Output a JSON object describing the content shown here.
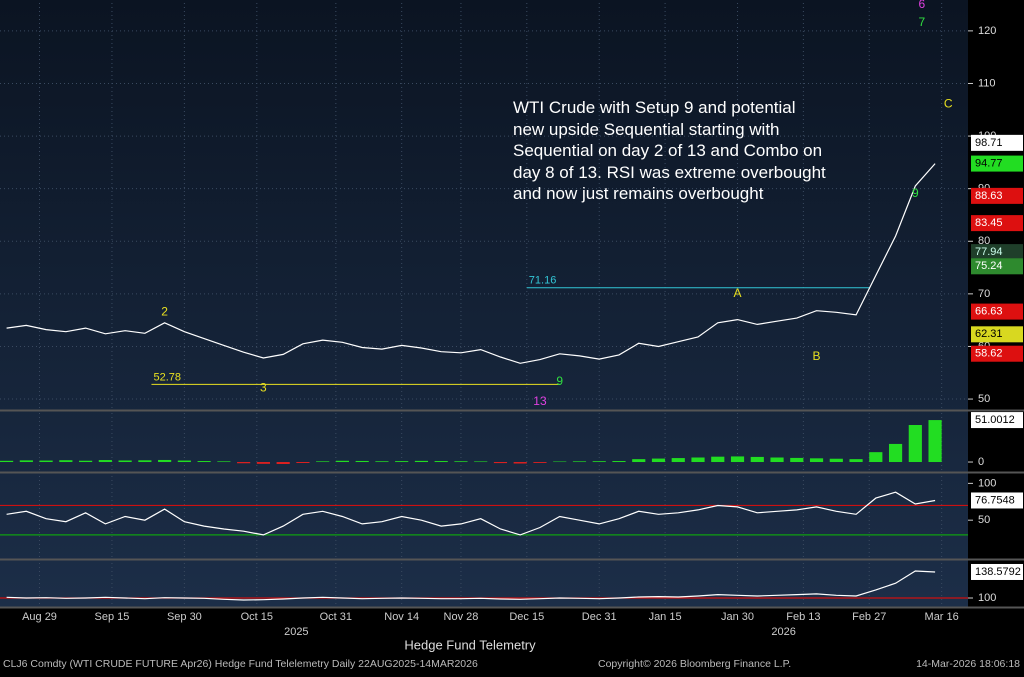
{
  "chart_data": [
    {
      "type": "line",
      "name": "price",
      "color": "#ffffff",
      "x": [
        0,
        3,
        6,
        9,
        12,
        15,
        18,
        21,
        24,
        27,
        30,
        33,
        36,
        39,
        42,
        45,
        48,
        51,
        54,
        57,
        60,
        63,
        66,
        69,
        72,
        75,
        78,
        81,
        84,
        87,
        90,
        93,
        96,
        99,
        102,
        105,
        108,
        111,
        114,
        117,
        120,
        123,
        126,
        129,
        132,
        135,
        138,
        141
      ],
      "values": [
        63.5,
        64,
        63.2,
        62.8,
        63.5,
        62.4,
        63.0,
        62.5,
        64.5,
        62.8,
        61.5,
        60.2,
        58.9,
        57.8,
        58.5,
        60.5,
        61.2,
        60.8,
        59.8,
        59.5,
        60.2,
        59.7,
        59.0,
        58.8,
        59.4,
        58.0,
        56.8,
        57.5,
        58.6,
        58.2,
        57.6,
        58.4,
        60.6,
        60.0,
        60.9,
        61.8,
        64.5,
        65.1,
        64.2,
        64.8,
        65.4,
        66.8,
        66.5,
        66.0,
        73.5,
        81.0,
        90.5,
        94.77
      ],
      "xlim": [
        -1,
        146
      ],
      "xticks": [
        {
          "value": 5,
          "label": "Aug 29"
        },
        {
          "value": 16,
          "label": "Sep 15"
        },
        {
          "value": 27,
          "label": "Sep 30"
        },
        {
          "value": 38,
          "label": "Oct 15"
        },
        {
          "value": 50,
          "label": "Oct 31"
        },
        {
          "value": 60,
          "label": "Nov 14"
        },
        {
          "value": 69,
          "label": "Nov 28"
        },
        {
          "value": 79,
          "label": "Dec 15"
        },
        {
          "value": 90,
          "label": "Dec 31"
        },
        {
          "value": 100,
          "label": "Jan 15"
        },
        {
          "value": 111,
          "label": "Jan 30"
        },
        {
          "value": 121,
          "label": "Feb 13"
        },
        {
          "value": 131,
          "label": "Feb 27"
        },
        {
          "value": 142,
          "label": "Mar 16"
        }
      ],
      "years": [
        {
          "value": 44,
          "label": "2025"
        },
        {
          "value": 118,
          "label": "2026"
        }
      ],
      "ylim": [
        48.3,
        125.3
      ],
      "yticks": [
        50,
        60,
        70,
        80,
        90,
        100,
        110,
        120
      ],
      "grid": true,
      "annotation": "WTI Crude with Setup 9 and potential new upside Sequential starting with Sequential on day 2 of 13 and Combo on day 8 of 13.  RSI was extreme overbought and now just remains overbought",
      "levels": [
        {
          "value": 71.16,
          "from": 79,
          "to": 131,
          "color": "#33c6d6"
        },
        {
          "value": 52.78,
          "from": 22,
          "to": 84,
          "color": "#e8e020"
        }
      ],
      "marks": [
        {
          "text": "A",
          "x": 111,
          "y": 70,
          "color": "#e8e020"
        },
        {
          "text": "B",
          "x": 123,
          "y": 58,
          "color": "#e8e020"
        },
        {
          "text": "C",
          "x": 143,
          "y": 106,
          "color": "#e8e020"
        },
        {
          "text": "6",
          "x": 139,
          "y": 125,
          "color": "#e040e0"
        },
        {
          "text": "7",
          "x": 139,
          "y": 121.5,
          "color": "#30e040"
        },
        {
          "text": "9",
          "x": 138,
          "y": 89,
          "color": "#30e040"
        },
        {
          "text": "9",
          "x": 84,
          "y": 53.3,
          "color": "#30e040"
        },
        {
          "text": "13",
          "x": 81,
          "y": 49.5,
          "color": "#e040e0"
        },
        {
          "text": "2",
          "x": 24,
          "y": 66.5,
          "color": "#e8e020"
        },
        {
          "text": "3",
          "x": 39,
          "y": 52,
          "color": "#e8e020"
        }
      ],
      "price_tags": [
        {
          "value": 98.71,
          "color": "#ffffff",
          "text_color": "#000000"
        },
        {
          "value": 94.77,
          "color": "#22dd22",
          "text_color": "#000000"
        },
        {
          "value": 88.63,
          "color": "#dd1010",
          "text_color": "#ffffff"
        },
        {
          "value": 83.45,
          "color": "#dd1010",
          "text_color": "#ffffff"
        },
        {
          "value": 77.94,
          "color": "#1f3f2a",
          "text_color": "#cfe"
        },
        {
          "value": 75.24,
          "color": "#2e8a2e",
          "text_color": "#ffffff"
        },
        {
          "value": 66.63,
          "color": "#dd1010",
          "text_color": "#ffffff"
        },
        {
          "value": 62.31,
          "color": "#d8d820",
          "text_color": "#000000"
        },
        {
          "value": 58.62,
          "color": "#dd1010",
          "text_color": "#ffffff"
        }
      ]
    },
    {
      "type": "bar",
      "name": "momentum",
      "pos_color": "#22dd22",
      "neg_color": "#dd2020",
      "values": [
        1.5,
        2,
        1.8,
        2.2,
        1.6,
        2.4,
        1.9,
        2.1,
        2.5,
        1.8,
        1.2,
        0.8,
        -1.5,
        -2.2,
        -2.4,
        -1.2,
        0.8,
        1.5,
        1.3,
        0.9,
        1.1,
        1.4,
        1.2,
        0.9,
        0.7,
        -1.3,
        -1.8,
        -1.1,
        0.6,
        0.8,
        1.0,
        1.2,
        3.5,
        4.2,
        4.8,
        5.5,
        6.5,
        6.8,
        6.2,
        5.5,
        5.0,
        4.5,
        4.0,
        3.5,
        12,
        22,
        45,
        51.0012
      ],
      "ylim": [
        -9.7,
        59.6
      ],
      "yticks": [
        0
      ]
    },
    {
      "type": "line",
      "name": "rsi",
      "color": "#ffffff",
      "values": [
        58,
        62,
        52,
        48,
        60,
        45,
        55,
        50,
        65,
        48,
        42,
        38,
        35,
        30,
        42,
        58,
        62,
        55,
        45,
        48,
        55,
        50,
        42,
        45,
        52,
        38,
        30,
        40,
        55,
        50,
        45,
        52,
        62,
        58,
        60,
        64,
        70,
        68,
        60,
        62,
        64,
        68,
        62,
        58,
        80,
        88,
        72,
        76.7548
      ],
      "ylim": [
        0,
        110
      ],
      "yticks": [
        50,
        100
      ],
      "ref_lines": [
        {
          "value": 70,
          "color": "#cc1010"
        },
        {
          "value": 30,
          "color": "#10a010"
        }
      ]
    },
    {
      "type": "line",
      "name": "osc",
      "color": "#ffffff",
      "values": [
        101,
        100,
        100.5,
        99.5,
        100,
        101,
        100,
        99,
        100.5,
        100,
        99.5,
        98,
        97,
        97.5,
        98.5,
        100,
        101,
        100,
        99,
        99.5,
        100,
        99.5,
        99,
        99,
        99.5,
        98.5,
        98,
        99,
        100,
        99.5,
        99,
        100,
        101.5,
        102,
        101.5,
        103,
        105,
        104,
        103,
        104,
        105,
        106,
        104,
        103,
        112,
        122,
        140,
        138.5792
      ],
      "ylim": [
        89.6,
        151.9
      ],
      "yticks": [
        100
      ],
      "ref_lines": [
        {
          "value": 100,
          "color": "#cc1010"
        }
      ]
    }
  ],
  "footer": {
    "title": "Hedge Fund Telemetry",
    "left": "CLJ6 Comdty (WTI CRUDE FUTURE  Apr26) Hedge Fund Telelemetry Daily 22AUG2025-14MAR2026",
    "middle": "Copyright© 2026 Bloomberg Finance L.P.",
    "right": "14-Mar-2026 18:06:18"
  }
}
